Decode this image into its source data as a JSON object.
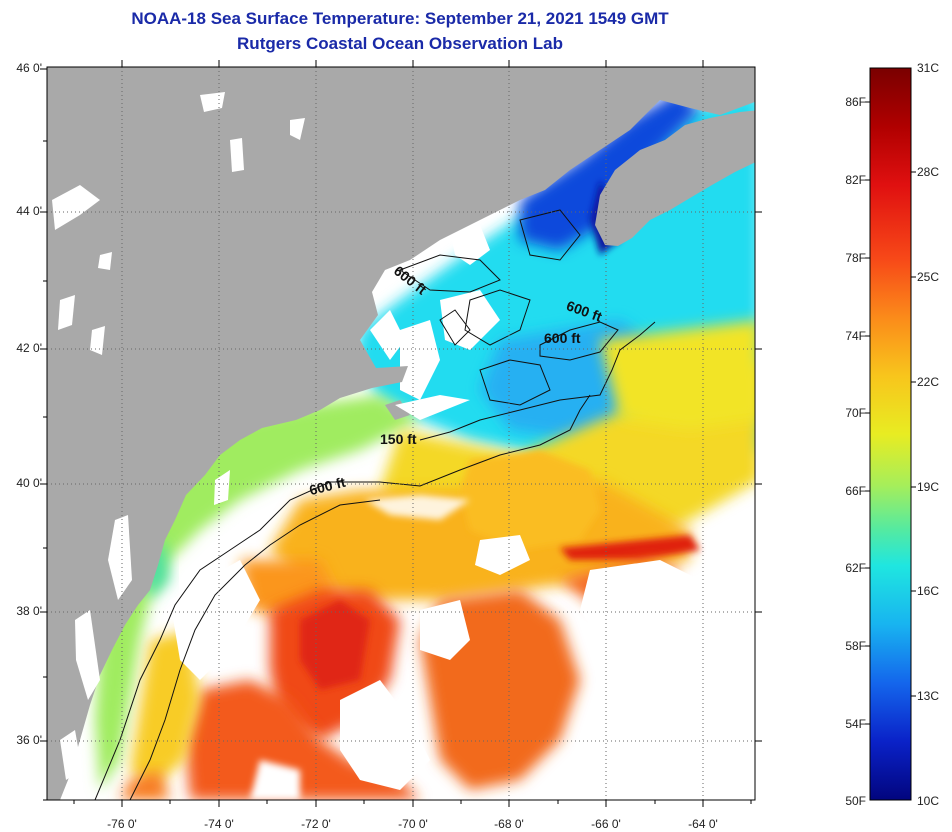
{
  "title": {
    "line1": "NOAA-18 Sea Surface Temperature:  September 21, 2021 1549 GMT",
    "line2": "Rutgers Coastal Ocean Observation Lab"
  },
  "axes": {
    "lat_labels": [
      "46 0'",
      "44 0'",
      "42 0'",
      "40 0'",
      "38 0'",
      "36 0'"
    ],
    "lon_labels": [
      "-76 0'",
      "-74 0'",
      "-72 0'",
      "-70 0'",
      "-68 0'",
      "-66 0'",
      "-64 0'"
    ]
  },
  "contour_labels": [
    "600 ft",
    "600 ft",
    "600 ft",
    "150 ft",
    "600 ft"
  ],
  "colorbar": {
    "fahrenheit_labels": [
      "86F",
      "82F",
      "78F",
      "74F",
      "70F",
      "66F",
      "62F",
      "58F",
      "54F",
      "50F"
    ],
    "celsius_labels": [
      "31C",
      "28C",
      "25C",
      "22C",
      "19C",
      "16C",
      "13C",
      "10C"
    ],
    "range_c": [
      10,
      31
    ],
    "colors": [
      "#7a0000",
      "#b00000",
      "#e01010",
      "#f74818",
      "#fb8a1a",
      "#f8c51c",
      "#e8ec22",
      "#a6ee5a",
      "#55eaa0",
      "#1fe6e0",
      "#18b4f0",
      "#1466ec",
      "#0a22c8",
      "#02057e"
    ]
  },
  "colors": {
    "land": "#a9a9a9",
    "no_data": "#ffffff",
    "title": "#1a2aa8"
  }
}
